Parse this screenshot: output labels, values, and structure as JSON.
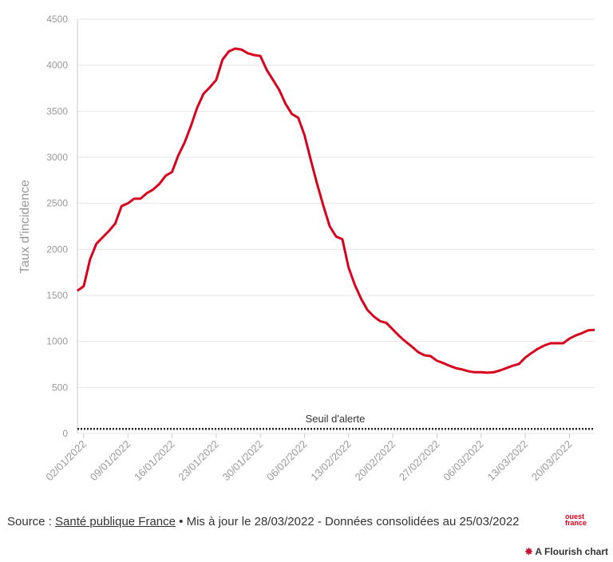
{
  "chart_data": {
    "type": "line",
    "ylabel": "Taux d'incidence",
    "x": [
      "01/01/2022",
      "02/01/2022",
      "03/01/2022",
      "04/01/2022",
      "05/01/2022",
      "06/01/2022",
      "07/01/2022",
      "08/01/2022",
      "09/01/2022",
      "10/01/2022",
      "11/01/2022",
      "12/01/2022",
      "13/01/2022",
      "14/01/2022",
      "15/01/2022",
      "16/01/2022",
      "17/01/2022",
      "18/01/2022",
      "19/01/2022",
      "20/01/2022",
      "21/01/2022",
      "22/01/2022",
      "23/01/2022",
      "24/01/2022",
      "25/01/2022",
      "26/01/2022",
      "27/01/2022",
      "28/01/2022",
      "29/01/2022",
      "30/01/2022",
      "31/01/2022",
      "01/02/2022",
      "02/02/2022",
      "03/02/2022",
      "04/02/2022",
      "05/02/2022",
      "06/02/2022",
      "07/02/2022",
      "08/02/2022",
      "09/02/2022",
      "10/02/2022",
      "11/02/2022",
      "12/02/2022",
      "13/02/2022",
      "14/02/2022",
      "15/02/2022",
      "16/02/2022",
      "17/02/2022",
      "18/02/2022",
      "19/02/2022",
      "20/02/2022",
      "21/02/2022",
      "22/02/2022",
      "23/02/2022",
      "24/02/2022",
      "25/02/2022",
      "26/02/2022",
      "27/02/2022",
      "28/02/2022",
      "01/03/2022",
      "02/03/2022",
      "03/03/2022",
      "04/03/2022",
      "05/03/2022",
      "06/03/2022",
      "07/03/2022",
      "08/03/2022",
      "09/03/2022",
      "10/03/2022",
      "11/03/2022",
      "12/03/2022",
      "13/03/2022",
      "14/03/2022",
      "15/03/2022",
      "16/03/2022",
      "17/03/2022",
      "18/03/2022",
      "19/03/2022",
      "20/03/2022",
      "21/03/2022",
      "22/03/2022",
      "23/03/2022",
      "24/03/2022"
    ],
    "values": [
      1550,
      1600,
      1890,
      2060,
      2130,
      2200,
      2280,
      2470,
      2500,
      2550,
      2550,
      2610,
      2650,
      2710,
      2800,
      2840,
      3020,
      3160,
      3340,
      3540,
      3690,
      3760,
      3840,
      4060,
      4150,
      4180,
      4170,
      4130,
      4110,
      4100,
      3950,
      3840,
      3730,
      3580,
      3470,
      3430,
      3240,
      2970,
      2710,
      2470,
      2250,
      2140,
      2110,
      1800,
      1610,
      1460,
      1340,
      1270,
      1220,
      1200,
      1130,
      1060,
      1000,
      945,
      885,
      850,
      840,
      790,
      765,
      735,
      710,
      695,
      675,
      665,
      665,
      660,
      665,
      685,
      710,
      735,
      755,
      825,
      875,
      920,
      955,
      980,
      980,
      980,
      1030,
      1065,
      1090,
      1120,
      1125
    ],
    "color": "#d7001d",
    "xlim": [
      "01/01/2022",
      "24/03/2022"
    ],
    "xticks": [
      "02/01/2022",
      "09/01/2022",
      "16/01/2022",
      "23/01/2022",
      "30/01/2022",
      "06/02/2022",
      "13/02/2022",
      "20/02/2022",
      "27/02/2022",
      "06/03/2022",
      "13/03/2022",
      "20/03/2022"
    ],
    "ylim": [
      0,
      4500
    ],
    "yticks": [
      0,
      500,
      1000,
      1500,
      2000,
      2500,
      3000,
      3500,
      4000,
      4500
    ],
    "grid": true,
    "threshold": {
      "label": "Seuil d'alerte",
      "value": 50
    }
  },
  "footer": {
    "source_prefix": "Source :",
    "source_link": "Santé publique France",
    "source_rest": "• Mis à jour le 28/03/2022 - Données consolidées au 25/03/2022",
    "logo": "ouest france",
    "credit": "A Flourish chart"
  }
}
